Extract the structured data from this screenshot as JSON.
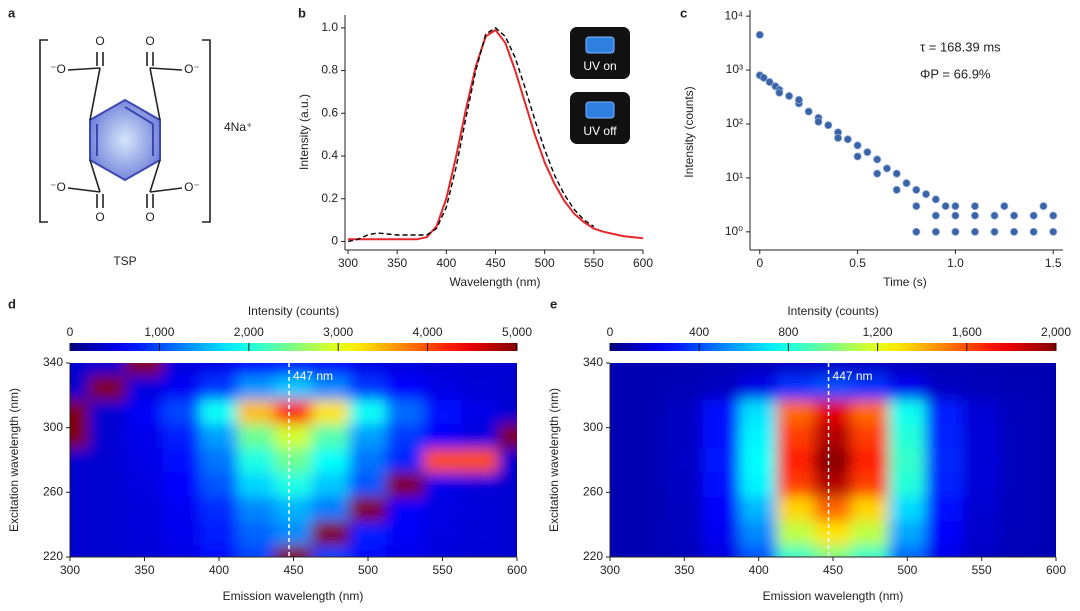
{
  "panel_a": {
    "label": "a",
    "caption": "TSP",
    "counterion": "4Na⁺",
    "atoms": [
      "⁻O",
      "O",
      "O",
      "O⁻",
      "⁻O",
      "O",
      "O",
      "O⁻"
    ]
  },
  "chart_data": [
    {
      "type": "line",
      "label": "b",
      "x_label": "Wavelength (nm)",
      "y_label": "Intensity (a.u.)",
      "x": [
        300,
        310,
        320,
        330,
        340,
        350,
        360,
        370,
        380,
        390,
        400,
        410,
        420,
        430,
        440,
        450,
        460,
        470,
        480,
        490,
        500,
        510,
        520,
        530,
        540,
        550,
        560,
        570,
        580,
        590,
        600
      ],
      "series": [
        {
          "color": "#e8262a",
          "line_style": "solid",
          "values": [
            0.01,
            0.01,
            0.01,
            0.01,
            0.01,
            0.01,
            0.01,
            0.01,
            0.02,
            0.07,
            0.2,
            0.4,
            0.62,
            0.82,
            0.96,
            0.99,
            0.93,
            0.8,
            0.65,
            0.5,
            0.37,
            0.27,
            0.19,
            0.13,
            0.09,
            0.06,
            0.045,
            0.035,
            0.025,
            0.02,
            0.015
          ]
        },
        {
          "color": "#000000",
          "line_style": "dashed",
          "values": [
            0,
            0.01,
            0.03,
            0.04,
            0.035,
            0.03,
            0.03,
            0.03,
            0.03,
            0.06,
            0.16,
            0.35,
            0.58,
            0.8,
            0.97,
            1.0,
            0.96,
            0.86,
            0.72,
            0.57,
            0.43,
            0.31,
            0.22,
            0.15,
            0.1,
            0.07,
            null,
            null,
            null,
            null,
            null
          ]
        }
      ],
      "xlim": [
        300,
        600
      ],
      "xticks": [
        300,
        350,
        400,
        450,
        500,
        550,
        600
      ],
      "ylim": [
        -0.04,
        1.06
      ],
      "yticks": [
        0,
        0.2,
        0.4,
        0.6,
        0.8,
        {
          "value": 1,
          "label": "1.0"
        }
      ],
      "insets": [
        "UV on",
        "UV off"
      ]
    },
    {
      "type": "scatter",
      "label": "c",
      "x_label": "Time (s)",
      "y_label": "Intensity (counts)",
      "color": "#3b64a8",
      "log_y": true,
      "annotations": [
        "τ = 168.39 ms",
        "ΦP = 66.9%"
      ],
      "x": [
        0,
        0,
        0.02,
        0.05,
        0.08,
        0.1,
        0.15,
        0.2,
        0.25,
        0.3,
        0.35,
        0.4,
        0.45,
        0.5,
        0.55,
        0.6,
        0.65,
        0.7,
        0.75,
        0.8,
        0.85,
        0.9,
        0.95,
        1.0,
        0.8,
        0.9,
        1.0,
        1.1,
        1.2,
        1.3,
        1.4,
        1.5,
        0.8,
        0.9,
        1.0,
        1.1,
        1.2,
        1.3,
        1.4,
        1.5,
        1.1,
        1.25,
        1.45,
        0.6,
        0.7,
        0.5,
        0.4,
        0.3,
        0.2,
        0.1
      ],
      "values": [
        4500,
        800,
        720,
        600,
        500,
        430,
        330,
        240,
        170,
        130,
        95,
        70,
        52,
        40,
        30,
        22,
        15,
        12,
        8,
        6,
        5,
        4,
        3,
        3,
        3,
        2,
        2,
        2,
        2,
        2,
        2,
        2,
        1,
        1,
        1,
        1,
        1,
        1,
        1,
        1,
        3,
        3,
        3,
        12,
        6,
        25,
        55,
        110,
        280,
        380
      ],
      "xlim": [
        -0.05,
        1.55
      ],
      "xticks": [
        0,
        0.5,
        {
          "value": 1,
          "label": "1.0"
        },
        1.5
      ],
      "ylim": [
        0.46,
        13000
      ],
      "yticks": [
        {
          "value": 1,
          "label": "10⁰"
        },
        {
          "value": 10,
          "label": "10¹"
        },
        {
          "value": 100,
          "label": "10²"
        },
        {
          "value": 1000,
          "label": "10³"
        },
        {
          "value": 10000,
          "label": "10⁴"
        }
      ]
    },
    {
      "type": "heatmap",
      "label": "d",
      "x_label": "Emission wavelength (nm)",
      "y_label": "Excitation wavelength (nm)",
      "colormap": "jet",
      "colorbar_title": "Intensity (counts)",
      "zlim": [
        0,
        5000
      ],
      "colorbar_ticks": [
        0,
        {
          "value": 1000,
          "label": "1,000"
        },
        {
          "value": 2000,
          "label": "2,000"
        },
        {
          "value": 3000,
          "label": "3,000"
        },
        {
          "value": 4000,
          "label": "4,000"
        },
        {
          "value": 5000,
          "label": "5,000"
        }
      ],
      "marker_line": {
        "value": 447,
        "label": "447 nm"
      },
      "x": [
        300,
        325,
        350,
        375,
        400,
        425,
        450,
        475,
        500,
        525,
        550,
        575,
        600
      ],
      "y": [
        220,
        235,
        250,
        265,
        280,
        295,
        310,
        325,
        340
      ],
      "z": [
        [
          400,
          400,
          435,
          505,
          680,
          960,
          5000,
          925,
          680,
          540,
          456,
          421,
          400
        ],
        [
          400,
          400,
          445,
          535,
          760,
          1120,
          1300,
          5000,
          760,
          580,
          472,
          427,
          400
        ],
        [
          400,
          400,
          455,
          565,
          840,
          1280,
          1500,
          1225,
          5000,
          620,
          488,
          433,
          400
        ],
        [
          400,
          400,
          480,
          640,
          1040,
          1680,
          2000,
          1600,
          1040,
          5000,
          528,
          448,
          400
        ],
        [
          400,
          400,
          500,
          700,
          1200,
          2000,
          2400,
          1900,
          1200,
          800,
          4000,
          4000,
          400
        ],
        [
          5000,
          400,
          525,
          775,
          1400,
          2400,
          2900,
          2275,
          1400,
          900,
          600,
          475,
          5000
        ],
        [
          5000,
          400,
          590,
          970,
          1920,
          3440,
          4200,
          3250,
          1920,
          1160,
          704,
          514,
          400
        ],
        [
          400,
          5000,
          460,
          580,
          880,
          1360,
          1600,
          1300,
          880,
          640,
          496,
          436,
          400
        ],
        [
          400,
          400,
          5000,
          445,
          520,
          640,
          700,
          625,
          520,
          460,
          424,
          409,
          400
        ]
      ],
      "xlim": [
        300,
        600
      ],
      "xticks": [
        300,
        350,
        400,
        450,
        500,
        550,
        600
      ],
      "ylim": [
        220,
        340
      ],
      "yticks": [
        220,
        260,
        300,
        340
      ]
    },
    {
      "type": "heatmap",
      "label": "e",
      "x_label": "Emission wavelength (nm)",
      "y_label": "Excitation wavelength (nm)",
      "colormap": "jet",
      "colorbar_title": "Intensity (counts)",
      "zlim": [
        0,
        2000
      ],
      "colorbar_ticks": [
        0,
        400,
        800,
        {
          "value": 1200,
          "label": "1,200"
        },
        {
          "value": 1600,
          "label": "1,600"
        },
        {
          "value": 2000,
          "label": "2,000"
        }
      ],
      "marker_line": {
        "value": 447,
        "label": "447 nm"
      },
      "x": [
        300,
        325,
        350,
        375,
        400,
        425,
        450,
        475,
        500,
        525,
        550,
        575,
        600
      ],
      "y": [
        220,
        235,
        250,
        265,
        280,
        295,
        310,
        325,
        340
      ],
      "z": [
        [
          100,
          100,
          118,
          190,
          415,
          865,
          1000,
          865,
          460,
          208,
          136,
          109,
          100
        ],
        [
          100,
          100,
          124,
          220,
          520,
          1120,
          1300,
          1120,
          580,
          244,
          148,
          112,
          100
        ],
        [
          100,
          100,
          129,
          245,
          608,
          1333,
          1550,
          1333,
          680,
          274,
          158,
          115,
          100
        ],
        [
          100,
          100,
          136,
          280,
          730,
          1630,
          1900,
          1630,
          820,
          316,
          172,
          118,
          100
        ],
        [
          100,
          100,
          138,
          288,
          758,
          1698,
          1980,
          1698,
          852,
          326,
          175,
          119,
          100
        ],
        [
          100,
          100,
          136,
          280,
          730,
          1630,
          1900,
          1630,
          820,
          316,
          172,
          118,
          100
        ],
        [
          100,
          100,
          134,
          270,
          695,
          1545,
          1800,
          1545,
          780,
          304,
          168,
          117,
          100
        ],
        [
          100,
          100,
          106,
          130,
          205,
          355,
          400,
          355,
          220,
          136,
          112,
          103,
          100
        ],
        [
          100,
          100,
          101,
          105,
          118,
          143,
          150,
          143,
          120,
          106,
          102,
          101,
          100
        ]
      ],
      "xlim": [
        300,
        600
      ],
      "xticks": [
        300,
        350,
        400,
        450,
        500,
        550,
        600
      ],
      "ylim": [
        220,
        340
      ],
      "yticks": [
        220,
        260,
        300,
        340
      ]
    }
  ]
}
